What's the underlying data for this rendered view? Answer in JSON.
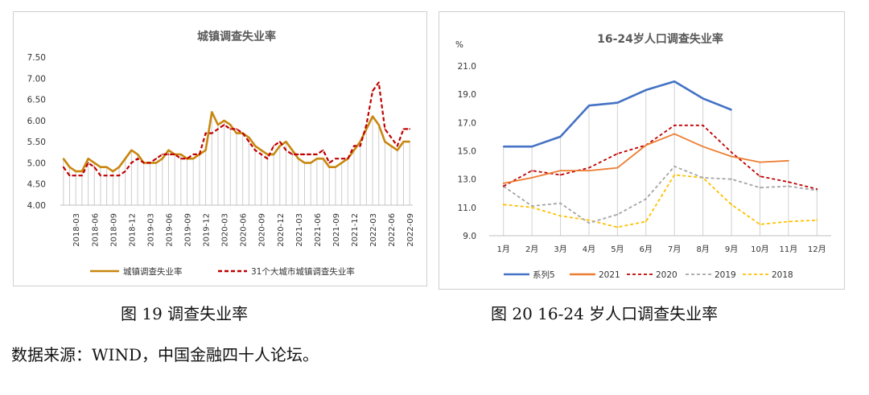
{
  "chart_data": [
    {
      "type": "line",
      "title": "城镇调查失业率",
      "ylim": [
        4.0,
        7.5
      ],
      "yticks": [
        "7.50",
        "7.00",
        "6.50",
        "6.00",
        "5.50",
        "5.00",
        "4.50",
        "4.00"
      ],
      "ytick_values": [
        7.5,
        7.0,
        6.5,
        6.0,
        5.5,
        5.0,
        4.5,
        4.0
      ],
      "x": [
        "2018-01",
        "2018-02",
        "2018-03",
        "2018-04",
        "2018-05",
        "2018-06",
        "2018-07",
        "2018-08",
        "2018-09",
        "2018-10",
        "2018-11",
        "2018-12",
        "2019-01",
        "2019-02",
        "2019-03",
        "2019-04",
        "2019-05",
        "2019-06",
        "2019-07",
        "2019-08",
        "2019-09",
        "2019-10",
        "2019-11",
        "2019-12",
        "2020-01",
        "2020-02",
        "2020-03",
        "2020-04",
        "2020-05",
        "2020-06",
        "2020-07",
        "2020-08",
        "2020-09",
        "2020-10",
        "2020-11",
        "2020-12",
        "2021-01",
        "2021-02",
        "2021-03",
        "2021-04",
        "2021-05",
        "2021-06",
        "2021-07",
        "2021-08",
        "2021-09",
        "2021-10",
        "2021-11",
        "2021-12",
        "2022-01",
        "2022-02",
        "2022-03",
        "2022-04",
        "2022-05",
        "2022-06",
        "2022-07",
        "2022-08",
        "2022-09"
      ],
      "xticklabels": [
        "2018-03",
        "2018-06",
        "2018-09",
        "2018-12",
        "2019-03",
        "2019-06",
        "2019-09",
        "2019-12",
        "2020-03",
        "2020-06",
        "2020-09",
        "2020-12",
        "2021-03",
        "2021-06",
        "2021-09",
        "2021-12",
        "2022-03",
        "2022-06",
        "2022-09"
      ],
      "series": [
        {
          "name": "城镇调查失业率",
          "color": "#C8870E",
          "style": "solid",
          "values": [
            5.1,
            4.9,
            4.8,
            4.8,
            5.1,
            5.0,
            4.9,
            4.9,
            4.8,
            4.9,
            5.1,
            5.3,
            5.2,
            5.0,
            5.0,
            5.0,
            5.1,
            5.3,
            5.2,
            5.2,
            5.1,
            5.1,
            5.2,
            5.3,
            6.2,
            5.9,
            6.0,
            5.9,
            5.7,
            5.7,
            5.6,
            5.4,
            5.3,
            5.2,
            5.2,
            5.4,
            5.5,
            5.3,
            5.1,
            5.0,
            5.0,
            5.1,
            5.1,
            4.9,
            4.9,
            5.0,
            5.1,
            5.3,
            5.5,
            5.8,
            6.1,
            5.9,
            5.5,
            5.4,
            5.3,
            5.5,
            5.5
          ]
        },
        {
          "name": "31个大城市城镇调查失业率",
          "color": "#C00000",
          "style": "dash",
          "values": [
            4.9,
            4.7,
            4.7,
            4.7,
            5.0,
            4.9,
            4.7,
            4.7,
            4.7,
            4.7,
            4.8,
            5.0,
            5.1,
            5.0,
            5.0,
            5.1,
            5.2,
            5.2,
            5.2,
            5.1,
            5.1,
            5.2,
            5.2,
            5.7,
            5.7,
            5.8,
            5.9,
            5.8,
            5.8,
            5.7,
            5.5,
            5.3,
            5.2,
            5.1,
            5.4,
            5.5,
            5.3,
            5.2,
            5.2,
            5.2,
            5.2,
            5.2,
            5.3,
            5.0,
            5.1,
            5.1,
            5.1,
            5.4,
            5.4,
            5.9,
            6.7,
            6.9,
            5.8,
            5.6,
            5.4,
            5.8,
            5.8
          ]
        }
      ],
      "legend": "bottom"
    },
    {
      "type": "line",
      "title": "16-24岁人口调查失业率",
      "ylabel": "%",
      "ylim": [
        9.0,
        21.0
      ],
      "yticks": [
        "21.0",
        "19.0",
        "17.0",
        "15.0",
        "13.0",
        "11.0",
        "9.0"
      ],
      "ytick_values": [
        21,
        19,
        17,
        15,
        13,
        11,
        9
      ],
      "categories": [
        "1月",
        "2月",
        "3月",
        "4月",
        "5月",
        "6月",
        "7月",
        "8月",
        "9月",
        "10月",
        "11月",
        "12月"
      ],
      "series": [
        {
          "name": "系列5",
          "color": "#4472C4",
          "style": "solid",
          "width": 2.6,
          "values": [
            15.3,
            15.3,
            16.0,
            18.2,
            18.4,
            19.3,
            19.9,
            18.7,
            17.9,
            null,
            null,
            null
          ]
        },
        {
          "name": "2021",
          "color": "#ED7D31",
          "style": "solid",
          "width": 1.8,
          "values": [
            12.7,
            13.1,
            13.6,
            13.6,
            13.8,
            15.4,
            16.2,
            15.3,
            14.6,
            14.2,
            14.3,
            null
          ]
        },
        {
          "name": "2020",
          "color": "#C00000",
          "style": "dash",
          "width": 1.8,
          "values": [
            12.5,
            13.6,
            13.3,
            13.8,
            14.8,
            15.4,
            16.8,
            16.8,
            14.9,
            13.2,
            12.8,
            12.3
          ]
        },
        {
          "name": "2019",
          "color": "#A5A5A5",
          "style": "dash",
          "width": 1.8,
          "values": [
            12.5,
            11.1,
            11.3,
            9.9,
            10.5,
            11.6,
            13.9,
            13.1,
            13.0,
            12.4,
            12.5,
            12.2
          ]
        },
        {
          "name": "2018",
          "color": "#FFC000",
          "style": "dash",
          "width": 1.8,
          "values": [
            11.2,
            11.0,
            10.4,
            10.1,
            9.6,
            10.0,
            13.3,
            13.1,
            11.2,
            9.8,
            10.0,
            10.1
          ]
        }
      ],
      "legend": "bottom"
    }
  ],
  "captions": {
    "left": "图 19  调查失业率",
    "right": "图 20 16-24 岁人口调查失业率"
  },
  "source_note": "数据来源：WIND，中国金融四十人论坛。"
}
